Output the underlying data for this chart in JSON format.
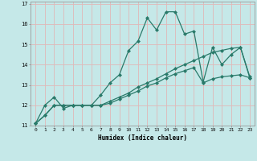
{
  "title": "",
  "xlabel": "Humidex (Indice chaleur)",
  "ylabel": "",
  "bg_color": "#c5e8e8",
  "grid_color": "#e0b8b8",
  "line_color": "#2a7a6a",
  "xlim": [
    -0.5,
    23.5
  ],
  "ylim": [
    11,
    17
  ],
  "yticks": [
    11,
    12,
    13,
    14,
    15,
    16,
    17
  ],
  "xticks": [
    0,
    1,
    2,
    3,
    4,
    5,
    6,
    7,
    8,
    9,
    10,
    11,
    12,
    13,
    14,
    15,
    16,
    17,
    18,
    19,
    20,
    21,
    22,
    23
  ],
  "line1_x": [
    0,
    1,
    2,
    3,
    4,
    5,
    6,
    7,
    8,
    9,
    10,
    11,
    12,
    13,
    14,
    15,
    16,
    17,
    18,
    19,
    20,
    21,
    22,
    23
  ],
  "line1_y": [
    11.1,
    12.0,
    12.4,
    11.85,
    12.0,
    12.0,
    12.0,
    12.5,
    13.1,
    13.5,
    14.7,
    15.15,
    16.3,
    15.7,
    16.6,
    16.6,
    15.5,
    15.65,
    13.15,
    14.85,
    14.0,
    14.5,
    14.85,
    13.4
  ],
  "line2_x": [
    0,
    1,
    2,
    3,
    4,
    5,
    6,
    7,
    8,
    9,
    10,
    11,
    12,
    13,
    14,
    15,
    16,
    17,
    18,
    19,
    20,
    21,
    22,
    23
  ],
  "line2_y": [
    11.1,
    11.5,
    12.0,
    12.0,
    12.0,
    12.0,
    12.0,
    12.0,
    12.2,
    12.4,
    12.6,
    12.9,
    13.1,
    13.3,
    13.55,
    13.8,
    14.0,
    14.2,
    14.4,
    14.6,
    14.7,
    14.8,
    14.85,
    13.35
  ],
  "line3_x": [
    0,
    1,
    2,
    3,
    4,
    5,
    6,
    7,
    8,
    9,
    10,
    11,
    12,
    13,
    14,
    15,
    16,
    17,
    18,
    19,
    20,
    21,
    22,
    23
  ],
  "line3_y": [
    11.1,
    11.5,
    12.0,
    12.0,
    12.0,
    12.0,
    12.0,
    12.0,
    12.1,
    12.3,
    12.5,
    12.7,
    12.95,
    13.1,
    13.35,
    13.55,
    13.7,
    13.85,
    13.1,
    13.3,
    13.4,
    13.45,
    13.5,
    13.35
  ],
  "marker": "D",
  "marker_size": 2.0,
  "linewidth": 0.9
}
